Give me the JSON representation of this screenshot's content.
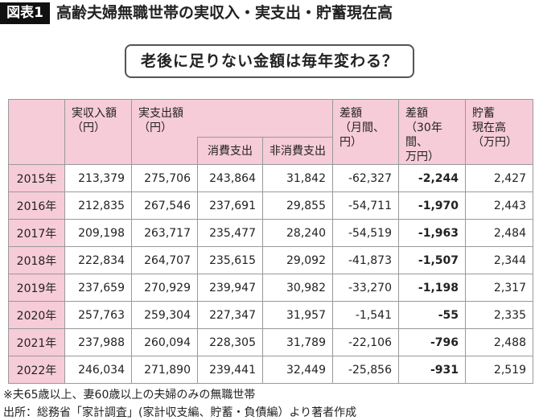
{
  "header": {
    "badge": "図表1",
    "title": "高齢夫婦無職世帯の実収入・実支出・貯蓄現在高"
  },
  "subtitle": "老後に足りない金額は毎年変わる？",
  "table": {
    "columns": [
      {
        "lines": [
          "実収入額",
          "（円）"
        ]
      },
      {
        "lines": [
          "実支出額",
          "（円）"
        ]
      },
      {
        "lines": [
          "消費支出"
        ]
      },
      {
        "lines": [
          "非消費支出"
        ]
      },
      {
        "lines": [
          "差額",
          "（月間、円）"
        ]
      },
      {
        "lines": [
          "差額",
          "（30年間、",
          "万円）"
        ]
      },
      {
        "lines": [
          "貯蓄",
          "現在高",
          "（万円）"
        ]
      }
    ],
    "rows": [
      [
        "2015年",
        "213,379",
        "275,706",
        "243,864",
        "31,842",
        "-62,327",
        "-2,244",
        "2,427"
      ],
      [
        "2016年",
        "212,835",
        "267,546",
        "237,691",
        "29,855",
        "-54,711",
        "-1,970",
        "2,443"
      ],
      [
        "2017年",
        "209,198",
        "263,717",
        "235,477",
        "28,240",
        "-54,519",
        "-1,963",
        "2,484"
      ],
      [
        "2018年",
        "222,834",
        "264,707",
        "235,615",
        "29,092",
        "-41,873",
        "-1,507",
        "2,344"
      ],
      [
        "2019年",
        "237,659",
        "270,929",
        "239,947",
        "30,982",
        "-33,270",
        "-1,198",
        "2,317"
      ],
      [
        "2020年",
        "257,763",
        "259,304",
        "227,347",
        "31,957",
        "-1,541",
        "-55",
        "2,335"
      ],
      [
        "2021年",
        "237,988",
        "260,094",
        "228,305",
        "31,789",
        "-22,106",
        "-796",
        "2,488"
      ],
      [
        "2022年",
        "246,034",
        "271,890",
        "239,441",
        "32,449",
        "-25,856",
        "-931",
        "2,519"
      ]
    ]
  },
  "notes": [
    "※夫65歳以上、妻60歳以上の夫婦のみの無職世帯",
    "出所：総務省「家計調査」(家計収支編、貯蓄・負債編）より著者作成"
  ]
}
